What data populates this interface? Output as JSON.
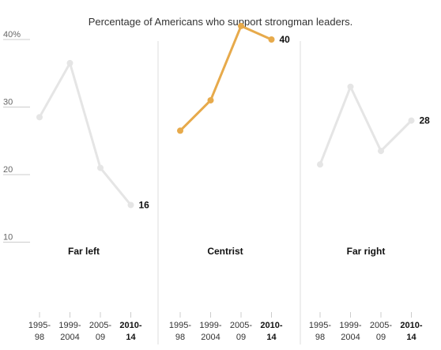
{
  "chart_data": {
    "type": "line",
    "title": "Percentage of Americans who support strongman leaders.",
    "x_categories": [
      [
        "1995-",
        "98"
      ],
      [
        "1999-",
        "2004"
      ],
      [
        "2005-",
        "09"
      ],
      [
        "2010-",
        "14"
      ]
    ],
    "y_ticks": [
      "40%",
      "30",
      "20",
      "10"
    ],
    "y_tick_values": [
      40,
      30,
      20,
      10
    ],
    "ylim": [
      0,
      45
    ],
    "grid": false,
    "panels": [
      {
        "name": "Far left",
        "values": [
          28.5,
          36.5,
          21,
          15.5
        ],
        "end_label": "16",
        "highlight": false
      },
      {
        "name": "Centrist",
        "values": [
          26.5,
          31,
          42,
          40
        ],
        "end_label": "40",
        "highlight": true
      },
      {
        "name": "Far right",
        "values": [
          21.5,
          33,
          23.5,
          28
        ],
        "end_label": "28",
        "highlight": false
      }
    ],
    "colors": {
      "muted_line": "#e5e5e5",
      "highlight_line": "#e7aa4b",
      "divider": "#dddddd",
      "axis_tick": "#cccccc"
    }
  }
}
